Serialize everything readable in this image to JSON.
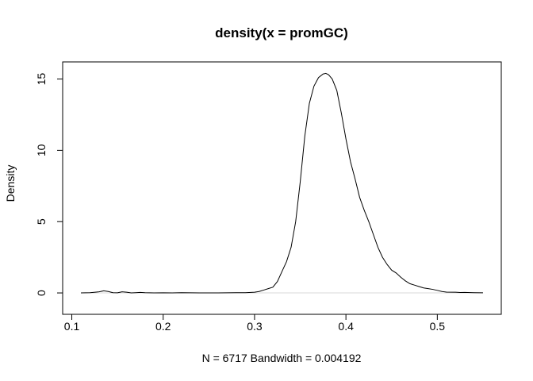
{
  "chart_data": {
    "type": "line",
    "title": "density(x = promGC)",
    "xlabel": "N = 6717   Bandwidth = 0.004192",
    "ylabel": "Density",
    "xlim": [
      0.09,
      0.57
    ],
    "ylim": [
      -1.5,
      16.2
    ],
    "x_ticks": [
      0.1,
      0.2,
      0.3,
      0.4,
      0.5
    ],
    "x_tick_labels": [
      "0.1",
      "0.2",
      "0.3",
      "0.4",
      "0.5"
    ],
    "y_ticks": [
      0,
      5,
      10,
      15
    ],
    "y_tick_labels": [
      "0",
      "5",
      "10",
      "15"
    ],
    "baseline": 0,
    "series": [
      {
        "x": [
          0.11,
          0.12,
          0.13,
          0.135,
          0.14,
          0.145,
          0.15,
          0.155,
          0.16,
          0.165,
          0.17,
          0.175,
          0.18,
          0.19,
          0.2,
          0.21,
          0.22,
          0.23,
          0.24,
          0.25,
          0.26,
          0.27,
          0.28,
          0.29,
          0.3,
          0.305,
          0.31,
          0.315,
          0.32,
          0.325,
          0.33,
          0.335,
          0.34,
          0.345,
          0.35,
          0.355,
          0.36,
          0.365,
          0.37,
          0.375,
          0.378,
          0.381,
          0.385,
          0.39,
          0.395,
          0.4,
          0.405,
          0.41,
          0.415,
          0.42,
          0.425,
          0.43,
          0.435,
          0.44,
          0.445,
          0.45,
          0.455,
          0.46,
          0.465,
          0.47,
          0.475,
          0.48,
          0.485,
          0.49,
          0.495,
          0.5,
          0.505,
          0.51,
          0.52,
          0.525,
          0.53,
          0.54,
          0.55
        ],
        "y": [
          0.0,
          0.02,
          0.08,
          0.15,
          0.1,
          0.02,
          0.01,
          0.08,
          0.05,
          0.0,
          0.02,
          0.04,
          0.02,
          0.0,
          0.01,
          0.0,
          0.02,
          0.01,
          0.0,
          0.0,
          0.0,
          0.01,
          0.02,
          0.02,
          0.05,
          0.1,
          0.2,
          0.3,
          0.4,
          0.8,
          1.5,
          2.2,
          3.2,
          5.0,
          7.8,
          11.0,
          13.3,
          14.5,
          15.1,
          15.35,
          15.4,
          15.3,
          15.0,
          14.2,
          12.6,
          10.8,
          9.2,
          8.0,
          6.7,
          5.8,
          5.0,
          4.1,
          3.2,
          2.5,
          2.0,
          1.6,
          1.4,
          1.1,
          0.85,
          0.65,
          0.55,
          0.45,
          0.35,
          0.3,
          0.25,
          0.18,
          0.1,
          0.06,
          0.05,
          0.03,
          0.04,
          0.02,
          0.01
        ]
      }
    ]
  }
}
